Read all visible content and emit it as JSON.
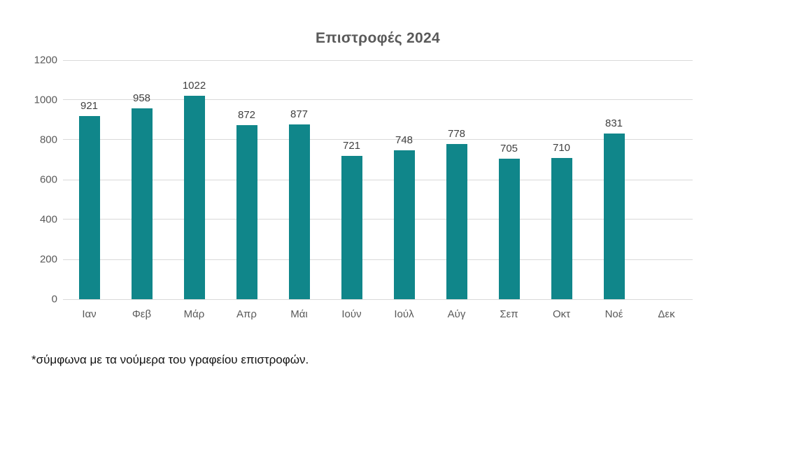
{
  "title": "Επιστροφές 2024",
  "footnote": "*σύμφωνα με τα νούμερα του γραφείου επιστροφών.",
  "colors": {
    "bar": "#10868A",
    "title_text": "#595959",
    "axis_text": "#595959",
    "data_label_text": "#404040",
    "gridline": "#D9D9D9",
    "footnote_text": "#111111",
    "background": "#FFFFFF"
  },
  "chart_data": {
    "type": "bar",
    "title": "Επιστροφές 2024",
    "categories": [
      "Ιαν",
      "Φεβ",
      "Μάρ",
      "Απρ",
      "Μάι",
      "Ιούν",
      "Ιούλ",
      "Αύγ",
      "Σεπ",
      "Οκτ",
      "Νοέ",
      "Δεκ"
    ],
    "category_names_en": [
      "jan",
      "feb",
      "mar",
      "apr",
      "may",
      "jun",
      "jul",
      "aug",
      "sep",
      "oct",
      "nov",
      "dec"
    ],
    "values": [
      921,
      958,
      1022,
      872,
      877,
      721,
      748,
      778,
      705,
      710,
      831,
      null
    ],
    "xlabel": "",
    "ylabel": "",
    "ylim": [
      0,
      1200
    ],
    "yticks": [
      0,
      200,
      400,
      600,
      800,
      1000,
      1200
    ],
    "grid": true,
    "legend": false,
    "data_labels": true
  }
}
